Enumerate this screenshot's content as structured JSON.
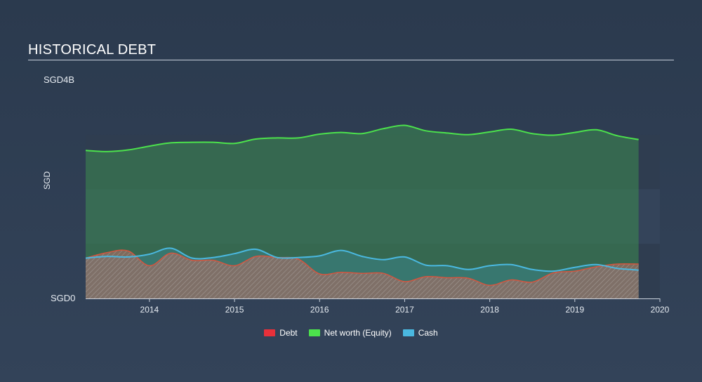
{
  "title": "HISTORICAL DEBT",
  "y_top_label": "SGD4B",
  "y_bottom_label": "SGD0",
  "y_axis_title": "SGD",
  "colors": {
    "debt": "#e8303a",
    "equity": "#4ce24c",
    "cash": "#4ab8e0"
  },
  "chart_data": {
    "type": "area",
    "title": "HISTORICAL DEBT",
    "ylabel": "SGD",
    "ylim": [
      0,
      4
    ],
    "y_unit": "SGD billions",
    "xlim": [
      2013.25,
      2020.0
    ],
    "x_ticks": [
      "2014",
      "2015",
      "2016",
      "2017",
      "2018",
      "2019",
      "2020"
    ],
    "x_tick_values": [
      2014,
      2015,
      2016,
      2017,
      2018,
      2019,
      2020
    ],
    "legend": [
      "Debt",
      "Net worth (Equity)",
      "Cash"
    ],
    "legend_position": "bottom-center",
    "series": [
      {
        "name": "Net worth (Equity)",
        "x": [
          2013.25,
          2013.5,
          2013.75,
          2014.0,
          2014.25,
          2014.5,
          2014.75,
          2015.0,
          2015.25,
          2015.5,
          2015.75,
          2016.0,
          2016.25,
          2016.5,
          2016.75,
          2017.0,
          2017.25,
          2017.5,
          2017.75,
          2018.0,
          2018.25,
          2018.5,
          2018.75,
          2019.0,
          2019.25,
          2019.5,
          2019.75
        ],
        "values": [
          2.71,
          2.69,
          2.72,
          2.79,
          2.85,
          2.86,
          2.86,
          2.84,
          2.92,
          2.94,
          2.94,
          3.01,
          3.04,
          3.02,
          3.11,
          3.17,
          3.07,
          3.03,
          3.0,
          3.05,
          3.1,
          3.02,
          2.99,
          3.04,
          3.09,
          2.98,
          2.91
        ]
      },
      {
        "name": "Cash",
        "x": [
          2013.25,
          2013.5,
          2013.75,
          2014.0,
          2014.25,
          2014.5,
          2014.75,
          2015.0,
          2015.25,
          2015.5,
          2015.75,
          2016.0,
          2016.25,
          2016.5,
          2016.75,
          2017.0,
          2017.25,
          2017.5,
          2017.75,
          2018.0,
          2018.25,
          2018.5,
          2018.75,
          2019.0,
          2019.25,
          2019.5,
          2019.75
        ],
        "values": [
          0.74,
          0.77,
          0.76,
          0.81,
          0.92,
          0.74,
          0.75,
          0.82,
          0.9,
          0.75,
          0.75,
          0.78,
          0.88,
          0.77,
          0.71,
          0.76,
          0.61,
          0.6,
          0.53,
          0.6,
          0.62,
          0.53,
          0.5,
          0.57,
          0.62,
          0.55,
          0.52
        ]
      },
      {
        "name": "Debt",
        "x": [
          2013.25,
          2013.5,
          2013.75,
          2014.0,
          2014.25,
          2014.5,
          2014.75,
          2015.0,
          2015.25,
          2015.5,
          2015.75,
          2016.0,
          2016.25,
          2016.5,
          2016.75,
          2017.0,
          2017.25,
          2017.5,
          2017.75,
          2018.0,
          2018.25,
          2018.5,
          2018.75,
          2019.0,
          2019.25,
          2019.5,
          2019.75
        ],
        "values": [
          0.74,
          0.84,
          0.87,
          0.6,
          0.83,
          0.7,
          0.7,
          0.6,
          0.77,
          0.75,
          0.72,
          0.45,
          0.48,
          0.46,
          0.46,
          0.31,
          0.4,
          0.38,
          0.37,
          0.24,
          0.34,
          0.3,
          0.47,
          0.5,
          0.58,
          0.63,
          0.63
        ]
      }
    ]
  }
}
